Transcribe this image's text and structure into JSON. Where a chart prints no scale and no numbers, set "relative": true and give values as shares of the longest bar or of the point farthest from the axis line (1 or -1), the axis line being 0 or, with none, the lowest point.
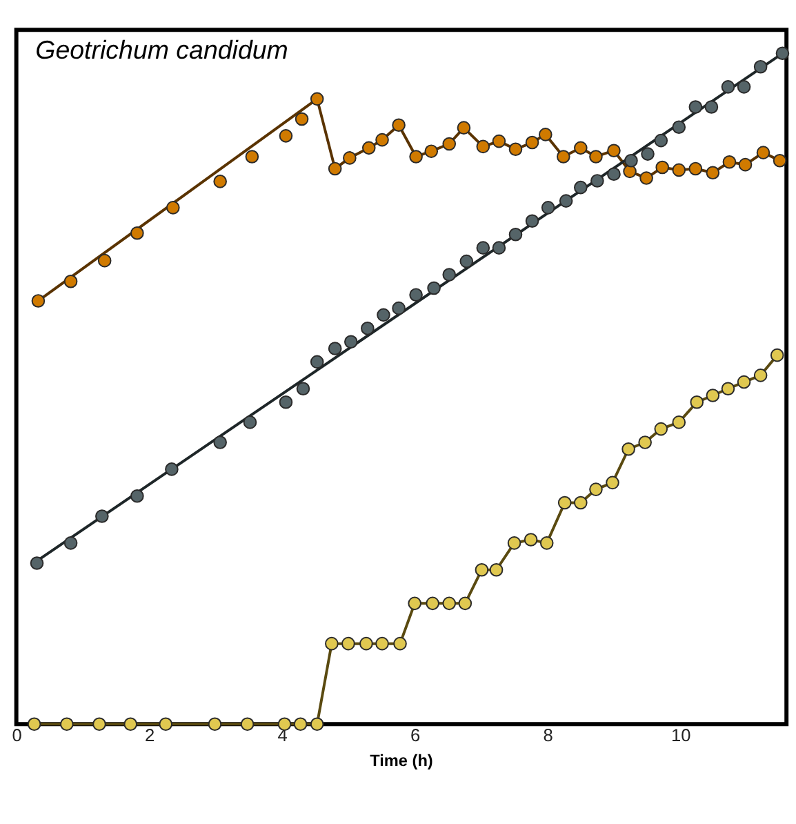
{
  "chart_data": {
    "type": "scatter",
    "title": "Geotrichum candidum",
    "xlabel": "Time (h)",
    "relative": true,
    "xlim": [
      0,
      11.6
    ],
    "xticks": [
      0,
      2,
      4,
      6,
      8,
      10
    ],
    "grid": false,
    "marker": "circle",
    "series": [
      {
        "type": "line",
        "marker": "none",
        "color": "#5a3300",
        "x": [
          0.33,
          4.53,
          4.8,
          5.02,
          5.31,
          5.51,
          5.76,
          6.02,
          6.25,
          6.52,
          6.74,
          7.03,
          7.27,
          7.52,
          7.77,
          7.97,
          8.24,
          8.5,
          8.73,
          9.0,
          9.24,
          9.49,
          9.73,
          9.98,
          10.23,
          10.49,
          10.74,
          10.98,
          11.25,
          11.5
        ],
        "values": [
          0.631,
          0.932,
          0.828,
          0.844,
          0.859,
          0.871,
          0.893,
          0.846,
          0.854,
          0.865,
          0.889,
          0.861,
          0.869,
          0.857,
          0.867,
          0.879,
          0.846,
          0.859,
          0.846,
          0.855,
          0.824,
          0.814,
          0.83,
          0.826,
          0.828,
          0.822,
          0.838,
          0.834,
          0.852,
          0.84
        ]
      },
      {
        "color": "#d07a00",
        "x": [
          0.33,
          0.82,
          1.33,
          1.82,
          2.36,
          3.07,
          3.55,
          4.06,
          4.3,
          4.53,
          4.8,
          5.02,
          5.31,
          5.51,
          5.76,
          6.02,
          6.25,
          6.52,
          6.74,
          7.03,
          7.27,
          7.52,
          7.77,
          7.97,
          8.24,
          8.5,
          8.73,
          9.0,
          9.24,
          9.49,
          9.73,
          9.98,
          10.23,
          10.49,
          10.74,
          10.98,
          11.25,
          11.5
        ],
        "values": [
          0.631,
          0.66,
          0.691,
          0.732,
          0.77,
          0.809,
          0.846,
          0.877,
          0.902,
          0.932,
          0.828,
          0.844,
          0.859,
          0.871,
          0.893,
          0.846,
          0.854,
          0.865,
          0.889,
          0.861,
          0.869,
          0.857,
          0.867,
          0.879,
          0.846,
          0.859,
          0.846,
          0.855,
          0.824,
          0.814,
          0.83,
          0.826,
          0.828,
          0.822,
          0.838,
          0.834,
          0.852,
          0.84
        ]
      },
      {
        "type": "line",
        "marker": "none",
        "color": "#1e2628",
        "x": [
          0.29,
          11.54
        ],
        "values": [
          0.242,
          1.0
        ]
      },
      {
        "color": "#556468",
        "x": [
          0.31,
          0.82,
          1.29,
          1.82,
          2.34,
          3.07,
          3.52,
          4.06,
          4.32,
          4.53,
          4.8,
          5.04,
          5.29,
          5.53,
          5.76,
          6.02,
          6.29,
          6.52,
          6.78,
          7.03,
          7.27,
          7.52,
          7.77,
          8.01,
          8.28,
          8.5,
          8.75,
          9.0,
          9.26,
          9.51,
          9.71,
          9.98,
          10.23,
          10.47,
          10.72,
          10.96,
          11.21,
          11.54
        ],
        "values": [
          0.24,
          0.27,
          0.31,
          0.34,
          0.38,
          0.42,
          0.45,
          0.48,
          0.5,
          0.54,
          0.56,
          0.57,
          0.59,
          0.61,
          0.62,
          0.64,
          0.65,
          0.67,
          0.69,
          0.71,
          0.71,
          0.73,
          0.75,
          0.77,
          0.78,
          0.8,
          0.81,
          0.82,
          0.84,
          0.85,
          0.87,
          0.89,
          0.92,
          0.92,
          0.95,
          0.95,
          0.98,
          1.0
        ]
      },
      {
        "type": "line",
        "marker": "circle",
        "color": "#e0c850",
        "x": [
          0.27,
          0.76,
          1.25,
          1.72,
          2.25,
          2.99,
          3.48,
          4.04,
          4.28,
          4.53,
          4.75,
          5.0,
          5.27,
          5.51,
          5.78,
          6.0,
          6.27,
          6.52,
          6.76,
          7.01,
          7.23,
          7.5,
          7.75,
          7.99,
          8.26,
          8.5,
          8.73,
          8.98,
          9.22,
          9.47,
          9.71,
          9.98,
          10.25,
          10.49,
          10.72,
          10.96,
          11.21,
          11.46
        ],
        "values": [
          0,
          0,
          0,
          0,
          0,
          0,
          0,
          0,
          0,
          0,
          0.12,
          0.12,
          0.12,
          0.12,
          0.12,
          0.18,
          0.18,
          0.18,
          0.18,
          0.23,
          0.23,
          0.27,
          0.275,
          0.27,
          0.33,
          0.33,
          0.35,
          0.36,
          0.41,
          0.42,
          0.44,
          0.45,
          0.48,
          0.49,
          0.5,
          0.51,
          0.52,
          0.55
        ]
      }
    ]
  }
}
